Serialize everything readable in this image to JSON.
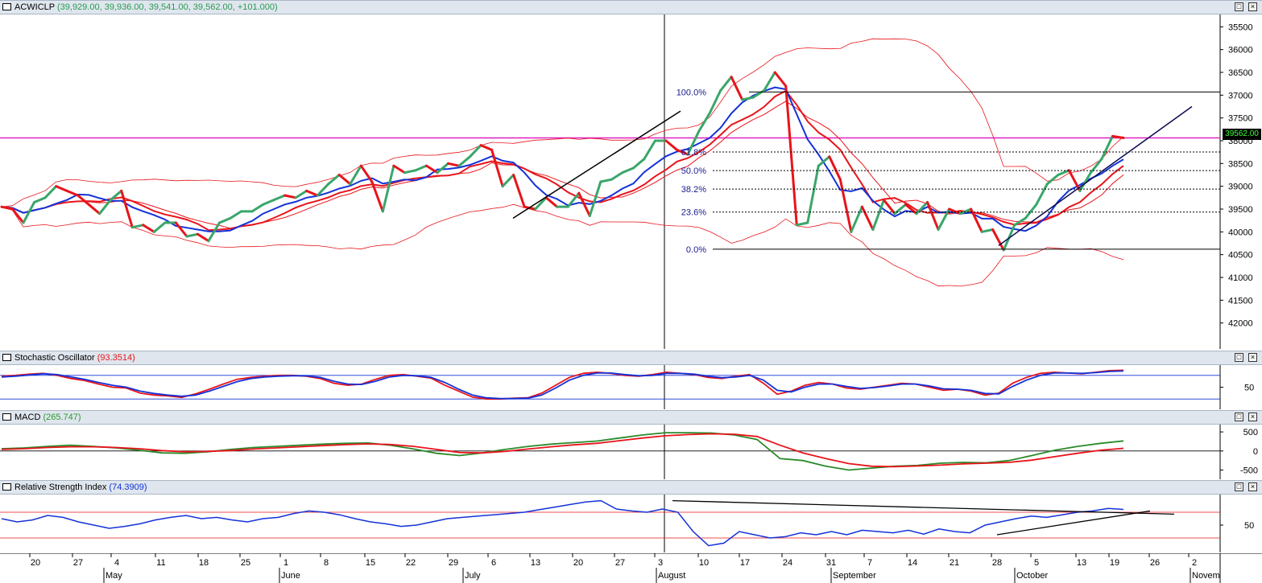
{
  "main": {
    "symbol": "ACWICLP",
    "ohlc_text": "(39,929.00, 39,936.00, 39,541.00, 39,562.00, +101.000)",
    "current_price_tag": "39562.00",
    "y_ticks": [
      "42000",
      "41500",
      "41000",
      "40500",
      "40000",
      "39500",
      "39000",
      "38500",
      "38000",
      "37500",
      "37000",
      "36500",
      "36000",
      "35500"
    ],
    "fib_labels": [
      "100.0%",
      "61.8%",
      "50.0%",
      "38.2%",
      "23.6%",
      "0.0%"
    ],
    "colors": {
      "up": "#3aa66a",
      "down": "#e8141b",
      "ma_blue": "#1432d8",
      "ma_red": "#e8141b",
      "band": "#e8141b",
      "hline": "#e020c0"
    }
  },
  "stochastic": {
    "title": "Stochastic Oscillator",
    "value": "(93.3514)",
    "y_ticks": [
      "50"
    ]
  },
  "macd": {
    "title": "MACD",
    "value": "(265.747)",
    "y_ticks": [
      "500",
      "0",
      "-500"
    ]
  },
  "rsi": {
    "title": "Relative Strength Index",
    "value": "(74.3909)",
    "y_ticks": [
      "50"
    ]
  },
  "x_axis": {
    "day_ticks": [
      "20",
      "27",
      "4",
      "11",
      "18",
      "25",
      "1",
      "8",
      "15",
      "22",
      "29",
      "6",
      "13",
      "20",
      "27",
      "3",
      "10",
      "17",
      "24",
      "31",
      "7",
      "14",
      "21",
      "28",
      "5",
      "13",
      "19",
      "26",
      "2"
    ],
    "month_labels": [
      "May",
      "June",
      "July",
      "August",
      "September",
      "October",
      "Novem"
    ]
  },
  "chart_data": [
    {
      "type": "line",
      "title": "ACWICLP",
      "ylim": [
        35000,
        42200
      ],
      "y_ticks": [
        35500,
        36000,
        36500,
        37000,
        37500,
        38000,
        38500,
        39000,
        39500,
        40000,
        40500,
        41000,
        41500,
        42000
      ],
      "series": [
        {
          "values": [
            38050,
            38000,
            37700,
            38150,
            38250,
            38500,
            38400,
            38300,
            38100,
            37900,
            38200,
            38400,
            37600,
            37650,
            37500,
            37700,
            37700,
            37400,
            37450,
            37300,
            37700,
            37800,
            37950,
            37950,
            38100,
            38200,
            38300,
            38250,
            38400,
            38300,
            38550,
            38750,
            38550,
            38950,
            38600,
            37950,
            38950,
            38800,
            38850,
            38950,
            38800,
            39000,
            38950,
            39150,
            39400,
            39300,
            38500,
            38750,
            38050,
            38000,
            38250,
            38050,
            38050,
            38350,
            37850,
            38600,
            38650,
            38800,
            38900,
            39100,
            39500,
            39500,
            39300,
            39200,
            39700,
            40100,
            40600,
            40900,
            40400,
            40450,
            40600,
            41000,
            40700,
            37650,
            37700,
            38950,
            39150,
            38650,
            37500,
            38050,
            37550,
            38200,
            37900,
            38100,
            37900,
            38150,
            37550,
            38000,
            37900,
            38000,
            37500,
            37550,
            37100,
            37650,
            37800,
            38100,
            38550,
            38750,
            38850,
            38400,
            38800,
            39100,
            39600,
            39562
          ]
        }
      ],
      "annotations": [
        "Fibonacci retracement levels 100.0%, 61.8%, 50.0%, 38.2%, 23.6%, 0.0%"
      ]
    },
    {
      "type": "line",
      "title": "Stochastic Oscillator",
      "ylim": [
        0,
        100
      ],
      "series": [
        {
          "values": [
            78,
            80,
            83,
            85,
            80,
            72,
            67,
            58,
            50,
            48,
            35,
            30,
            28,
            24,
            33,
            45,
            58,
            70,
            75,
            78,
            80,
            80,
            78,
            72,
            60,
            55,
            58,
            70,
            80,
            82,
            78,
            73,
            55,
            40,
            25,
            20,
            20,
            22,
            23,
            35,
            55,
            75,
            85,
            88,
            85,
            80,
            78,
            82,
            88,
            85,
            82,
            75,
            72,
            78,
            82,
            60,
            32,
            40,
            55,
            62,
            58,
            48,
            45,
            50,
            55,
            60,
            58,
            50,
            42,
            45,
            40,
            30,
            35,
            60,
            75,
            85,
            88,
            86,
            84,
            88,
            92,
            93
          ]
        },
        {
          "values": [
            76,
            78,
            81,
            84,
            82,
            76,
            70,
            62,
            55,
            50,
            40,
            34,
            30,
            27,
            30,
            40,
            52,
            64,
            72,
            76,
            78,
            79,
            79,
            75,
            65,
            58,
            57,
            65,
            76,
            80,
            79,
            75,
            62,
            45,
            30,
            23,
            21,
            21,
            22,
            30,
            48,
            68,
            80,
            86,
            86,
            82,
            79,
            80,
            85,
            85,
            83,
            78,
            74,
            76,
            80,
            68,
            42,
            38,
            50,
            58,
            58,
            52,
            47,
            49,
            53,
            58,
            58,
            53,
            46,
            45,
            42,
            34,
            33,
            52,
            68,
            80,
            86,
            86,
            85,
            87,
            90,
            91
          ]
        }
      ]
    },
    {
      "type": "line",
      "title": "MACD",
      "ylim": [
        -700,
        650
      ],
      "y_ticks": [
        -500,
        0,
        500
      ],
      "series": [
        {
          "values": [
            60,
            80,
            120,
            150,
            120,
            80,
            20,
            -50,
            -60,
            -20,
            40,
            90,
            120,
            150,
            180,
            200,
            210,
            150,
            50,
            -60,
            -120,
            -50,
            40,
            120,
            180,
            220,
            260,
            340,
            420,
            480,
            480,
            470,
            420,
            300,
            -200,
            -250,
            -400,
            -500,
            -450,
            -400,
            -380,
            -320,
            -300,
            -310,
            -250,
            -120,
            20,
            120,
            200,
            265
          ]
        },
        {
          "values": [
            40,
            60,
            90,
            110,
            110,
            90,
            60,
            10,
            -20,
            -10,
            10,
            50,
            80,
            110,
            140,
            165,
            185,
            170,
            120,
            40,
            -40,
            -50,
            -10,
            50,
            110,
            160,
            200,
            270,
            340,
            400,
            430,
            450,
            440,
            380,
            150,
            -50,
            -200,
            -330,
            -400,
            -410,
            -395,
            -370,
            -340,
            -320,
            -300,
            -240,
            -150,
            -60,
            20,
            70
          ]
        }
      ]
    },
    {
      "type": "line",
      "title": "Relative Strength Index",
      "ylim": [
        10,
        95
      ],
      "series": [
        {
          "values": [
            60,
            55,
            58,
            65,
            62,
            55,
            50,
            45,
            48,
            52,
            58,
            62,
            65,
            60,
            62,
            58,
            55,
            60,
            62,
            68,
            72,
            70,
            66,
            60,
            55,
            52,
            48,
            50,
            55,
            60,
            62,
            64,
            66,
            68,
            70,
            74,
            78,
            82,
            86,
            88,
            75,
            72,
            70,
            75,
            70,
            40,
            18,
            22,
            40,
            35,
            30,
            32,
            38,
            35,
            40,
            35,
            42,
            40,
            38,
            42,
            36,
            44,
            40,
            38,
            50,
            55,
            60,
            64,
            62,
            66,
            70,
            72,
            76,
            74.4
          ]
        }
      ]
    }
  ]
}
